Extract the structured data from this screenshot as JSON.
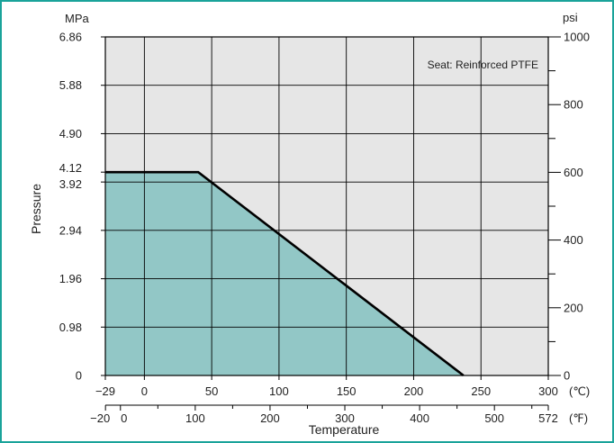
{
  "chart_data": {
    "type": "area",
    "title": "",
    "annotation": "Seat: Reinforced PTFE",
    "xlabel": "Temperature",
    "ylabel": "Pressure",
    "x_unit_c": "(℃)",
    "x_unit_f": "(℉)",
    "y_unit_left": "MPa",
    "y_unit_right": "psi",
    "xlim_c": [
      -29,
      300
    ],
    "ylim_mpa": [
      0,
      6.86
    ],
    "x_ticks_c": [
      "-29",
      "0",
      "50",
      "100",
      "150",
      "200",
      "250",
      "300"
    ],
    "x_ticks_f": [
      "-20",
      "0",
      "100",
      "200",
      "300",
      "400",
      "500",
      "572"
    ],
    "y_ticks_left": [
      "0",
      "0.98",
      "1.96",
      "2.94",
      "3.92",
      "4.12",
      "4.90",
      "5.88",
      "6.86"
    ],
    "y_ticks_right": [
      "0",
      "200",
      "400",
      "600",
      "800",
      "1000"
    ],
    "grid": true,
    "series": [
      {
        "x": [
          -29,
          40,
          237
        ],
        "y": [
          4.12,
          4.12,
          0
        ]
      }
    ],
    "colors": {
      "fill": "#92c7c6",
      "background": "#e6e6e6",
      "line": "#000000",
      "border": "#1aa39a"
    }
  }
}
